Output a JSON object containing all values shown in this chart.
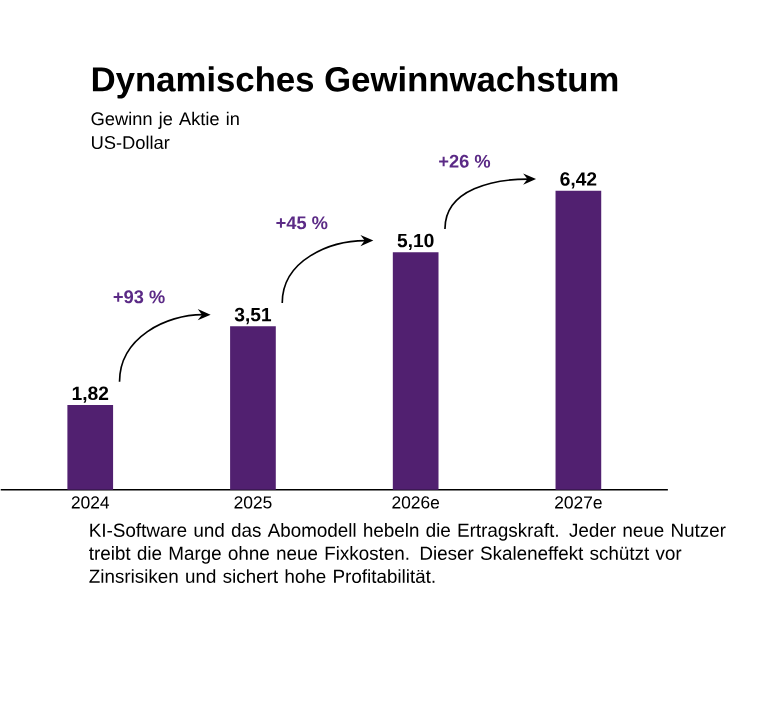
{
  "chart_data": {
    "type": "bar",
    "title": "Dynamisches Gewinnwachstum",
    "subtitle": "Gewinn je Aktie in US-Dollar",
    "categories": [
      "2024",
      "2025",
      "2026e",
      "2027e"
    ],
    "values": [
      1.82,
      3.51,
      5.1,
      6.42
    ],
    "value_labels": [
      "1,82",
      "3,51",
      "5,10",
      "6,42"
    ],
    "color": "#512070",
    "annotations": [
      "+93 %",
      "+45 %",
      "+26 %",
      "KI-Software und das Abomodell hebeln die Ertragskraft. Jeder neue Nutzer treibt die Marge ohne neue Fixkosten. Dieser Skaleneffekt schützt vor Zinsrisiken und sichert hohe Profitabilität."
    ]
  }
}
